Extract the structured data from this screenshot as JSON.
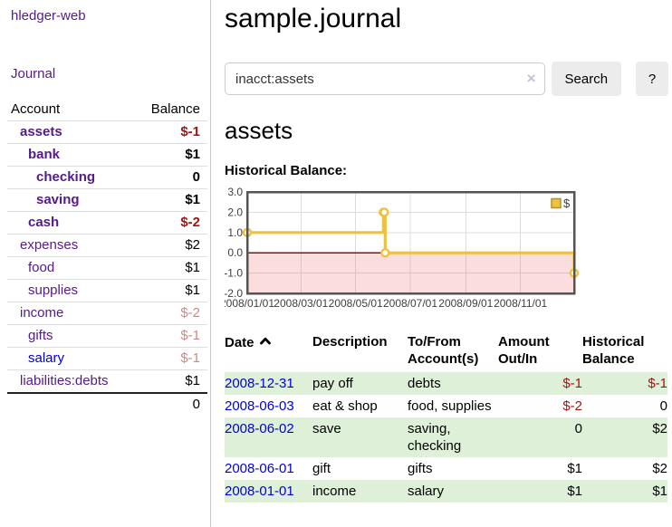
{
  "colors": {
    "link_purple": "#551a8b",
    "link_blue": "#0000dd",
    "negative_strong": "#a01414",
    "negative_soft": "#c98a8a",
    "row_stripe_green": "#dff0d8",
    "chart_line_gold": "#edc240"
  },
  "sidebar": {
    "brand": "hledger-web",
    "journal_link": "Journal",
    "accounts": {
      "header_account": "Account",
      "header_balance": "Balance",
      "rows": [
        {
          "name": "assets",
          "depth": 0,
          "bold": true,
          "balance": "$-1"
        },
        {
          "name": "bank",
          "depth": 1,
          "bold": true,
          "balance": "$1"
        },
        {
          "name": "checking",
          "depth": 2,
          "bold": true,
          "balance": "0"
        },
        {
          "name": "saving",
          "depth": 2,
          "bold": true,
          "balance": "$1"
        },
        {
          "name": "cash",
          "depth": 1,
          "bold": true,
          "balance": "$-2"
        },
        {
          "name": "expenses",
          "depth": 0,
          "bold": false,
          "balance": "$2"
        },
        {
          "name": "food",
          "depth": 1,
          "bold": false,
          "balance": "$1"
        },
        {
          "name": "supplies",
          "depth": 1,
          "bold": false,
          "balance": "$1"
        },
        {
          "name": "income",
          "depth": 0,
          "bold": false,
          "balance": "$-2"
        },
        {
          "name": "gifts",
          "depth": 1,
          "bold": false,
          "balance": "$-1"
        },
        {
          "name": "salary",
          "depth": 1,
          "bold": false,
          "balance": "$-1",
          "link_color": "blue"
        },
        {
          "name": "liabilities:debts",
          "depth": 0,
          "bold": false,
          "balance": "$1"
        }
      ],
      "total": "0"
    }
  },
  "main": {
    "title": "sample.journal",
    "search": {
      "value": "inacct:assets",
      "clear_icon": "×",
      "search_button": "Search",
      "help_button": "?"
    },
    "heading": "assets",
    "chart_title": "Historical Balance:"
  },
  "chart_data": {
    "type": "line",
    "step": true,
    "title": "Historical Balance",
    "series": [
      {
        "name": "$",
        "points": [
          [
            "2008-01-01",
            1
          ],
          [
            "2008-06-01",
            2
          ],
          [
            "2008-06-02",
            2
          ],
          [
            "2008-06-03",
            0
          ],
          [
            "2008-12-31",
            -1
          ]
        ]
      }
    ],
    "x_start": "2008-01-01",
    "x_end": "2008-12-31",
    "x_ticks": [
      {
        "date": "2008-01-01",
        "label": "2008/01/01"
      },
      {
        "date": "2008-03-01",
        "label": "2008/03/01"
      },
      {
        "date": "2008-05-01",
        "label": "2008/05/01"
      },
      {
        "date": "2008-07-01",
        "label": "2008/07/01"
      },
      {
        "date": "2008-09-01",
        "label": "2008/09/01"
      },
      {
        "date": "2008-11-01",
        "label": "2008/11/01"
      }
    ],
    "y_ticks": [
      {
        "value": 3,
        "label": "3.0"
      },
      {
        "value": 2,
        "label": "2.0"
      },
      {
        "value": 1,
        "label": "1.0"
      },
      {
        "value": 0,
        "label": "0.0"
      },
      {
        "value": -1,
        "label": "-1.0"
      },
      {
        "value": -2,
        "label": "-2.0"
      }
    ],
    "ylim": [
      -2,
      3
    ],
    "grid": true,
    "legend": {
      "label": "$",
      "position": "top-right"
    },
    "style": {
      "line_color": "#edc240",
      "marker_fill": "#ffffff",
      "negative_region": "rgba(240,100,100,0.22)",
      "zero_line": "#8b1010",
      "grid_color": "#dcdcdc",
      "border_color": "#545454"
    }
  },
  "transactions": {
    "headers": {
      "date": "Date",
      "sort_icon": "chevron-up",
      "description": "Description",
      "accounts": "To/From Account(s)",
      "amount": "Amount Out/In",
      "balance": "Historical Balance"
    },
    "rows": [
      {
        "date": "2008-12-31",
        "description": "pay off",
        "accounts": "debts",
        "amount": "$-1",
        "balance": "$-1"
      },
      {
        "date": "2008-06-03",
        "description": "eat & shop",
        "accounts": "food, supplies",
        "amount": "$-2",
        "balance": "0"
      },
      {
        "date": "2008-06-02",
        "description": "save",
        "accounts": "saving, checking",
        "amount": "0",
        "balance": "$2"
      },
      {
        "date": "2008-06-01",
        "description": "gift",
        "accounts": "gifts",
        "amount": "$1",
        "balance": "$2"
      },
      {
        "date": "2008-01-01",
        "description": "income",
        "accounts": "salary",
        "amount": "$1",
        "balance": "$1"
      }
    ]
  }
}
